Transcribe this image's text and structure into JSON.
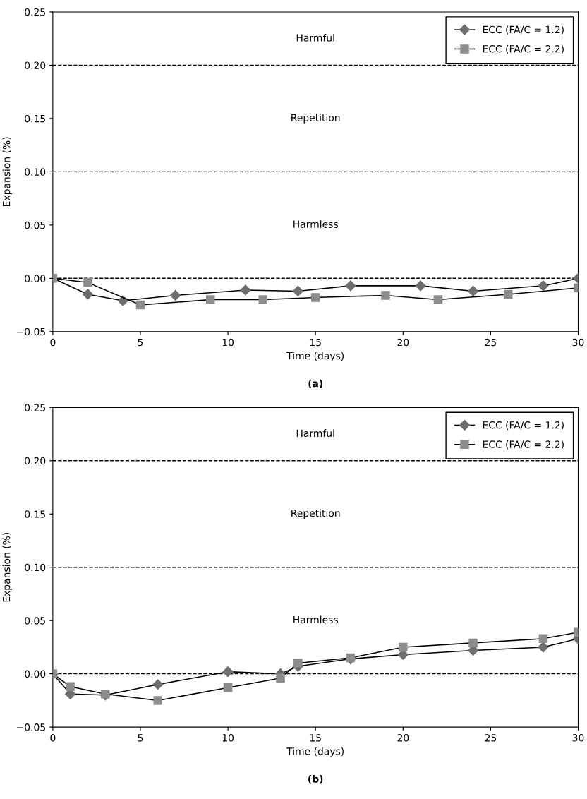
{
  "chart_data": [
    {
      "type": "line",
      "xlabel": "Time (days)",
      "ylabel": "Expansion (%)",
      "xlim": [
        0,
        30
      ],
      "xticks": [
        0,
        5,
        10,
        15,
        20,
        25,
        30
      ],
      "ylim": [
        -0.05,
        0.25
      ],
      "yticks": [
        {
          "value": -0.05,
          "label": "−0.05"
        },
        {
          "value": 0,
          "label": "0.00"
        },
        {
          "value": 0.05,
          "label": "0.05"
        },
        {
          "value": 0.1,
          "label": "0.10"
        },
        {
          "value": 0.15,
          "label": "0.15"
        },
        {
          "value": 0.2,
          "label": "0.20"
        },
        {
          "value": 0.25,
          "label": "0.25"
        }
      ],
      "grid": false,
      "legend": "top right",
      "line_style": "solid",
      "ref_lines": [
        {
          "axis": "y",
          "value": 0.2,
          "line_style": "dashed"
        },
        {
          "axis": "y",
          "value": 0.1,
          "line_style": "dashed"
        },
        {
          "axis": "y",
          "value": 0,
          "line_style": "dashed"
        }
      ],
      "annotations": [
        "Harmful",
        "Repetition",
        "Harmless",
        "(a)"
      ],
      "series": [
        {
          "name": "ECC (FA/C = 1.2)",
          "color": "#6e6e6e",
          "marker": "diamond",
          "x": [
            0,
            2,
            4,
            7,
            11,
            14,
            17,
            21,
            24,
            28,
            30
          ],
          "values": [
            0,
            -0.015,
            -0.021,
            -0.016,
            -0.011,
            -0.012,
            -0.007,
            -0.007,
            -0.012,
            -0.007,
            0
          ]
        },
        {
          "name": "ECC (FA/C = 2.2)",
          "color": "#8c8c8c",
          "marker": "square",
          "x": [
            0,
            2,
            5,
            9,
            12,
            15,
            19,
            22,
            26,
            30
          ],
          "values": [
            0,
            -0.004,
            -0.025,
            -0.02,
            -0.02,
            -0.018,
            -0.016,
            -0.02,
            -0.015,
            -0.009
          ]
        }
      ]
    },
    {
      "type": "line",
      "xlabel": "Time (days)",
      "ylabel": "Expansion (%)",
      "xlim": [
        0,
        30
      ],
      "xticks": [
        0,
        5,
        10,
        15,
        20,
        25,
        30
      ],
      "ylim": [
        -0.05,
        0.25
      ],
      "yticks": [
        {
          "value": -0.05,
          "label": "−0.05"
        },
        {
          "value": 0,
          "label": "0.00"
        },
        {
          "value": 0.05,
          "label": "0.05"
        },
        {
          "value": 0.1,
          "label": "0.10"
        },
        {
          "value": 0.15,
          "label": "0.15"
        },
        {
          "value": 0.2,
          "label": "0.20"
        },
        {
          "value": 0.25,
          "label": "0.25"
        }
      ],
      "grid": false,
      "legend": "top right",
      "line_style": "solid",
      "ref_lines": [
        {
          "axis": "y",
          "value": 0.2,
          "line_style": "dashed"
        },
        {
          "axis": "y",
          "value": 0.1,
          "line_style": "dashed"
        },
        {
          "axis": "y",
          "value": 0,
          "line_style": "dashed"
        }
      ],
      "annotations": [
        "Harmful",
        "Repetition",
        "Harmless",
        "(b)"
      ],
      "series": [
        {
          "name": "ECC (FA/C = 1.2)",
          "color": "#6e6e6e",
          "marker": "diamond",
          "x": [
            0,
            1,
            3,
            6,
            10,
            13,
            14,
            17,
            20,
            24,
            28,
            30
          ],
          "values": [
            0,
            -0.019,
            -0.02,
            -0.01,
            0.002,
            0,
            0.007,
            0.014,
            0.018,
            0.022,
            0.025,
            0.033
          ]
        },
        {
          "name": "ECC (FA/C = 2.2)",
          "color": "#8c8c8c",
          "marker": "square",
          "x": [
            0,
            1,
            3,
            6,
            10,
            13,
            14,
            17,
            20,
            24,
            28,
            30
          ],
          "values": [
            0,
            -0.012,
            -0.019,
            -0.025,
            -0.013,
            -0.004,
            0.01,
            0.015,
            0.025,
            0.029,
            0.033,
            0.039
          ]
        }
      ]
    }
  ]
}
